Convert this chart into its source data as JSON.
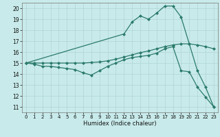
{
  "xlabel": "Humidex (Indice chaleur)",
  "bg_color": "#c8eaea",
  "grid_color": "#b0d4d4",
  "line_color": "#2a7a6a",
  "marker": "D",
  "markersize": 2.0,
  "linewidth": 0.9,
  "xlim": [
    -0.5,
    23.5
  ],
  "ylim": [
    10.5,
    20.5
  ],
  "xticks": [
    0,
    1,
    2,
    3,
    4,
    5,
    6,
    7,
    8,
    9,
    10,
    11,
    12,
    13,
    14,
    15,
    16,
    17,
    18,
    19,
    20,
    21,
    22,
    23
  ],
  "yticks": [
    11,
    12,
    13,
    14,
    15,
    16,
    17,
    18,
    19,
    20
  ],
  "line1_x": [
    0,
    1,
    2,
    3,
    4,
    5,
    6,
    7,
    8,
    9,
    10,
    11,
    12,
    13,
    14,
    15,
    16,
    17,
    18,
    19,
    20,
    21,
    22,
    23
  ],
  "line1_y": [
    15.0,
    14.9,
    14.7,
    14.7,
    14.6,
    14.5,
    14.4,
    14.1,
    13.9,
    14.3,
    14.7,
    15.0,
    15.3,
    15.5,
    15.6,
    15.7,
    15.9,
    16.3,
    16.5,
    14.3,
    14.2,
    12.8,
    11.9,
    11.0
  ],
  "line2_x": [
    0,
    1,
    2,
    3,
    4,
    5,
    6,
    7,
    8,
    9,
    10,
    11,
    12,
    13,
    14,
    15,
    16,
    17,
    18,
    19,
    20,
    21,
    22,
    23
  ],
  "line2_y": [
    15.0,
    15.0,
    15.0,
    15.0,
    15.0,
    15.0,
    15.0,
    15.0,
    15.05,
    15.1,
    15.2,
    15.35,
    15.55,
    15.75,
    15.95,
    16.1,
    16.3,
    16.5,
    16.65,
    16.75,
    16.75,
    16.65,
    16.5,
    16.3
  ],
  "line3_x": [
    0,
    12,
    13,
    14,
    15,
    16,
    17,
    18,
    19,
    20,
    21,
    22,
    23
  ],
  "line3_y": [
    15.0,
    17.65,
    18.75,
    19.3,
    19.0,
    19.55,
    20.2,
    20.2,
    19.2,
    16.75,
    14.3,
    12.8,
    11.0
  ]
}
